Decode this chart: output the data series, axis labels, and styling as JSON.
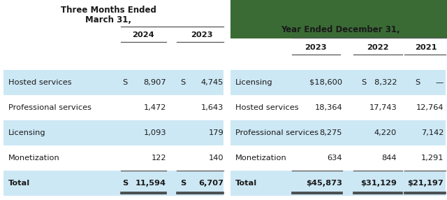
{
  "title_left_line1": "Three Months Ended",
  "title_left_line2": "March 31,",
  "title_right": "Year Ended December 31,",
  "dark_green": "#3a6b35",
  "light_blue": "#cde8f5",
  "white": "#ffffff",
  "text_color": "#1a1a1a",
  "left_table": {
    "years": [
      "2024",
      "2023"
    ],
    "rows": [
      {
        "label": "Hosted services",
        "v1": "S   8,907",
        "v2": "S   4,745",
        "shaded": true,
        "total": false
      },
      {
        "label": "Professional services",
        "v1": "1,472",
        "v2": "1,643",
        "shaded": false,
        "total": false
      },
      {
        "label": "Licensing",
        "v1": "1,093",
        "v2": "179",
        "shaded": true,
        "total": false
      },
      {
        "label": "Monetization",
        "v1": "122",
        "v2": "140",
        "shaded": false,
        "total": false
      },
      {
        "label": "Total",
        "v1": "S   11,594",
        "v2": "S   6,707",
        "shaded": true,
        "total": true
      }
    ]
  },
  "right_table": {
    "years": [
      "2023",
      "2022",
      "2021"
    ],
    "rows": [
      {
        "label": "Licensing",
        "v1": "$18,600",
        "v2": "S   8,322",
        "v3": "S      —",
        "shaded": true,
        "total": false
      },
      {
        "label": "Hosted services",
        "v1": "18,364",
        "v2": "17,743",
        "v3": "12,764",
        "shaded": false,
        "total": false
      },
      {
        "label": "Professional services",
        "v1": "8,275",
        "v2": "4,220",
        "v3": "7,142",
        "shaded": true,
        "total": false
      },
      {
        "label": "Monetization",
        "v1": "634",
        "v2": "844",
        "v3": "1,291",
        "shaded": false,
        "total": false
      },
      {
        "label": "Total",
        "v1": "$45,873",
        "v2": "$31,129",
        "v3": "$21,197",
        "shaded": true,
        "total": true
      }
    ]
  }
}
